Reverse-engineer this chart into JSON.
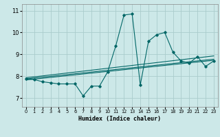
{
  "title": "",
  "xlabel": "Humidex (Indice chaleur)",
  "bg_color": "#cce8e8",
  "grid_color": "#aacccc",
  "line_color": "#006666",
  "xlim": [
    -0.5,
    23.5
  ],
  "ylim": [
    6.6,
    11.3
  ],
  "xticks": [
    0,
    1,
    2,
    3,
    4,
    5,
    6,
    7,
    8,
    9,
    10,
    11,
    12,
    13,
    14,
    15,
    16,
    17,
    18,
    19,
    20,
    21,
    22,
    23
  ],
  "yticks": [
    7,
    8,
    9,
    10,
    11
  ],
  "main_x": [
    0,
    1,
    2,
    3,
    4,
    5,
    6,
    7,
    8,
    9,
    10,
    11,
    12,
    13,
    14,
    15,
    16,
    17,
    18,
    19,
    20,
    21,
    22,
    23
  ],
  "main_y": [
    7.9,
    7.85,
    7.75,
    7.7,
    7.65,
    7.65,
    7.65,
    7.1,
    7.55,
    7.55,
    8.2,
    9.4,
    10.8,
    10.85,
    7.6,
    9.6,
    9.9,
    10.0,
    9.1,
    8.7,
    8.6,
    8.9,
    8.45,
    8.7
  ],
  "line1_x": [
    0,
    23
  ],
  "line1_y": [
    7.88,
    8.78
  ],
  "line2_x": [
    0,
    23
  ],
  "line2_y": [
    7.83,
    8.73
  ],
  "line3_x": [
    0,
    23
  ],
  "line3_y": [
    7.93,
    8.93
  ]
}
